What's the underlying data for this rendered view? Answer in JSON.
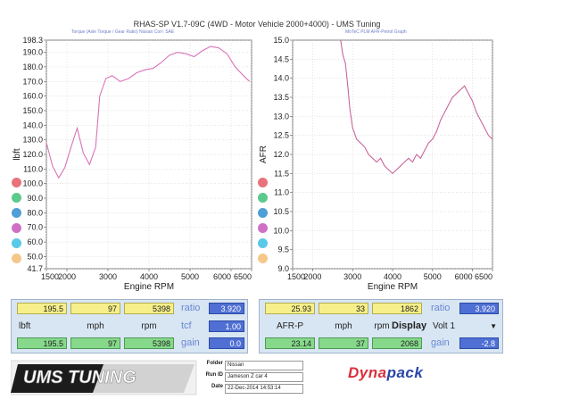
{
  "header": {
    "title": "RHAS-SP V1.7-09C  (4WD - Motor Vehicle 2000+4000) - UMS Tuning",
    "left_sub": "Torque (Axle Torque / Gear Ratio) Nissan    Corr: SAE",
    "right_sub": "MoTeC PLM AFR-Petrol Graph"
  },
  "chart_data": [
    {
      "type": "line",
      "xlabel": "Engine RPM",
      "ylabel": "lbft",
      "xlim": [
        1500,
        6500
      ],
      "ylim": [
        41.7,
        198.3
      ],
      "xticks": [
        "1500",
        "2000",
        "3000",
        "4000",
        "5000",
        "6000",
        "6500"
      ],
      "yticks": [
        "198.3",
        "190.0",
        "180.0",
        "170.0",
        "160.0",
        "150.0",
        "140.0",
        "130.0",
        "120.0",
        "110.0",
        "100.0",
        "90.0",
        "80.0",
        "70.0",
        "60.0",
        "50.0",
        "41.7"
      ],
      "grid": true,
      "series": [
        {
          "color": "#d873b8",
          "x": [
            1500,
            1650,
            1800,
            1950,
            2100,
            2250,
            2400,
            2550,
            2700,
            2800,
            2950,
            3100,
            3300,
            3500,
            3700,
            3900,
            4100,
            4300,
            4500,
            4700,
            4900,
            5100,
            5300,
            5500,
            5700,
            5900,
            6100,
            6300,
            6450
          ],
          "y": [
            128,
            112,
            104,
            111,
            125,
            138,
            121,
            113,
            125,
            160,
            172,
            174,
            170,
            172,
            176,
            178,
            179,
            183,
            188,
            190,
            189,
            187,
            191,
            194,
            193,
            189,
            180,
            174,
            170
          ]
        }
      ]
    },
    {
      "type": "line",
      "xlabel": "Engine RPM",
      "ylabel": "AFR",
      "xlim": [
        1500,
        6500
      ],
      "ylim": [
        9.0,
        15.0
      ],
      "xticks": [
        "1500",
        "2000",
        "3000",
        "4000",
        "5000",
        "6000",
        "6500"
      ],
      "yticks": [
        "15.0",
        "14.5",
        "14.0",
        "13.5",
        "13.0",
        "12.5",
        "12.0",
        "11.5",
        "11.0",
        "10.5",
        "10.0",
        "9.5",
        "9.0"
      ],
      "grid": true,
      "series": [
        {
          "color": "#c8669c",
          "x": [
            2700,
            2760,
            2820,
            2880,
            2930,
            3000,
            3100,
            3200,
            3300,
            3400,
            3500,
            3600,
            3700,
            3800,
            3900,
            4000,
            4100,
            4200,
            4300,
            4400,
            4500,
            4600,
            4700,
            4800,
            4900,
            5000,
            5100,
            5200,
            5300,
            5400,
            5500,
            5600,
            5700,
            5800,
            5900,
            6000,
            6100,
            6200,
            6300,
            6400,
            6500
          ],
          "y": [
            15.0,
            14.6,
            14.4,
            13.8,
            13.2,
            12.7,
            12.4,
            12.3,
            12.2,
            12.0,
            11.9,
            11.8,
            11.9,
            11.7,
            11.6,
            11.5,
            11.6,
            11.7,
            11.8,
            11.9,
            11.8,
            12.0,
            11.9,
            12.1,
            12.3,
            12.4,
            12.6,
            12.9,
            13.1,
            13.3,
            13.5,
            13.6,
            13.7,
            13.8,
            13.6,
            13.4,
            13.1,
            12.9,
            12.7,
            12.5,
            12.4
          ]
        }
      ]
    }
  ],
  "readouts": {
    "left_top": [
      "195.5",
      "97",
      "5398"
    ],
    "left_ratio_label": "ratio",
    "left_ratio_value": "3.920",
    "left_labels": [
      "lbft",
      "mph",
      "rpm"
    ],
    "left_tcf_label": "tcf",
    "left_tcf_value": "1.00",
    "left_bottom": [
      "195.5",
      "97",
      "5398"
    ],
    "left_gain_label": "gain",
    "left_gain_value": "0.0",
    "right_top": [
      "25.93",
      "33",
      "1862"
    ],
    "right_ratio_label": "ratio",
    "right_ratio_value": "3.920",
    "right_labels": [
      "AFR-P",
      "mph",
      "rpm"
    ],
    "display_label": "Display",
    "display_value": "Volt 1",
    "right_bottom": [
      "23.14",
      "37",
      "2068"
    ],
    "right_gain_label": "gain",
    "right_gain_value": "-2.8"
  },
  "footer": {
    "logo_text": "UMS TUNING",
    "folder_label": "Folder",
    "folder_value": "Nissan",
    "runid_label": "Run ID",
    "runid_value": "Jameson Z car 4",
    "date_label": "Date",
    "date_value": "22-Dec-2014   14:53:14",
    "brand_a": "Dyna",
    "brand_b": "pack"
  },
  "colors": {
    "dot_colors": [
      "#e9737a",
      "#5cc98d",
      "#4f9fd6",
      "#d070c4",
      "#58c9e8",
      "#f5c889"
    ],
    "panel": "#d8e6f3"
  }
}
